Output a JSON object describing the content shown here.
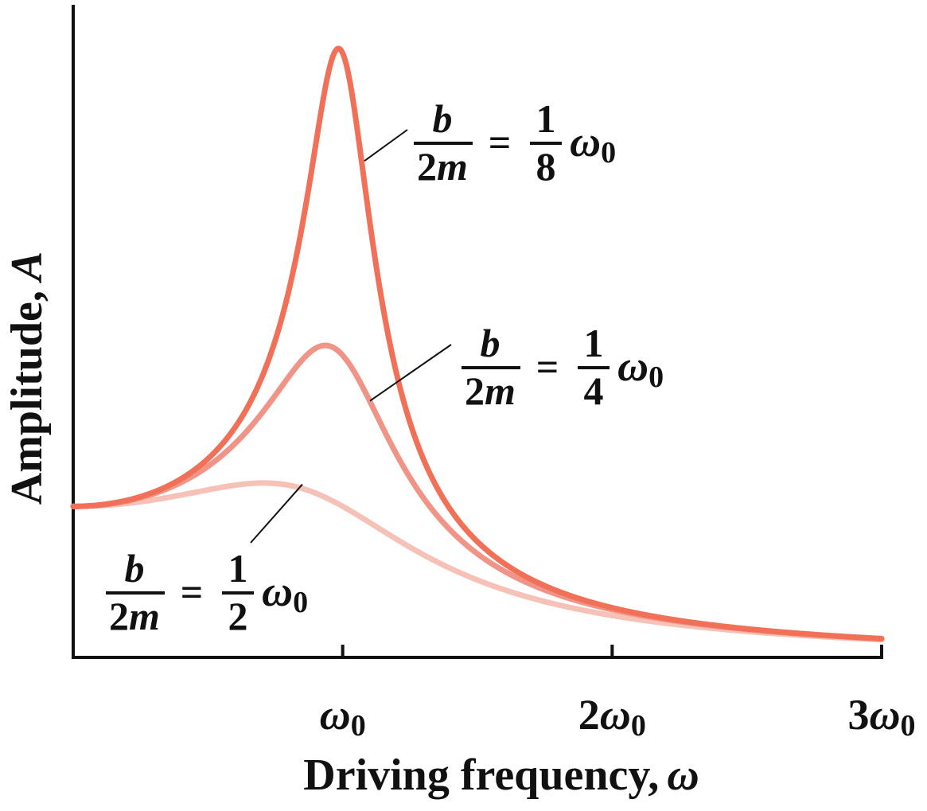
{
  "chart_data": {
    "type": "line",
    "title": "",
    "xlabel": "Driving frequency,",
    "xlabel_symbol": "ω",
    "ylabel": "Amplitude,",
    "ylabel_symbol": "A",
    "x_ticks": [
      {
        "value": 1,
        "coef": "",
        "sym": "ω",
        "sub": "0"
      },
      {
        "value": 2,
        "coef": "2",
        "sym": "ω",
        "sub": "0"
      },
      {
        "value": 3,
        "coef": "3",
        "sym": "ω",
        "sub": "0"
      }
    ],
    "xlim": [
      0,
      3
    ],
    "ylim": [
      0,
      4.3
    ],
    "grid": false,
    "omega0": 1,
    "series": [
      {
        "key": "s8",
        "frac_num": "1",
        "frac_den": "8",
        "gamma": 0.125,
        "color": "#f07058"
      },
      {
        "key": "s4",
        "frac_num": "1",
        "frac_den": "4",
        "gamma": 0.25,
        "color": "#f09488"
      },
      {
        "key": "s2",
        "frac_num": "1",
        "frac_den": "2",
        "gamma": 0.5,
        "color": "#f6c2b8"
      }
    ],
    "label_text": {
      "num": "b",
      "den_coef": "2",
      "den_var": "m",
      "eq": "=",
      "sym": "ω",
      "sub": "0"
    }
  }
}
